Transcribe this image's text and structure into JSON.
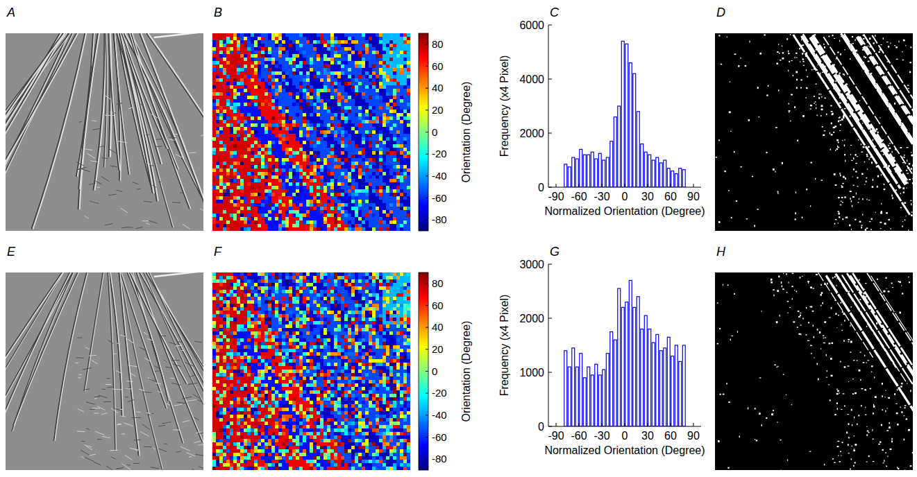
{
  "chart_data": [
    {
      "type": "grayscale_image",
      "panel_label": "A"
    },
    {
      "type": "heatmap",
      "panel_label": "B",
      "colorbar": {
        "range": [
          -90,
          90
        ],
        "ticks": [
          -80,
          -60,
          -40,
          -20,
          0,
          20,
          40,
          60,
          80
        ],
        "label": "Orientation (Degree)"
      }
    },
    {
      "type": "histogram",
      "panel_label": "C",
      "bins": [
        -80,
        -75,
        -70,
        -65,
        -60,
        -55,
        -50,
        -45,
        -40,
        -35,
        -30,
        -25,
        -20,
        -15,
        -10,
        -5,
        0,
        5,
        10,
        15,
        20,
        25,
        30,
        35,
        40,
        45,
        50,
        55,
        60,
        65,
        70,
        75,
        80
      ],
      "values": [
        850,
        750,
        1100,
        1050,
        1400,
        1200,
        1200,
        1300,
        1050,
        1250,
        1000,
        1100,
        1700,
        2600,
        3000,
        5400,
        5300,
        4600,
        4200,
        2800,
        1600,
        1300,
        1200,
        1000,
        1100,
        900,
        1000,
        700,
        600,
        500,
        700,
        650
      ],
      "color": "#0000ff",
      "xlim": [
        -100,
        100
      ],
      "xticks": [
        -90,
        -60,
        -30,
        0,
        30,
        60,
        90
      ],
      "ylim": [
        0,
        6000
      ],
      "yticks": [
        0,
        2000,
        4000,
        6000
      ],
      "x_label": "Normalized Orientation (Degree)",
      "y_label": "Frequency (x4 Pixel)"
    },
    {
      "type": "binary_image",
      "panel_label": "D"
    },
    {
      "type": "grayscale_image",
      "panel_label": "E"
    },
    {
      "type": "heatmap",
      "panel_label": "F",
      "colorbar": {
        "range": [
          -90,
          90
        ],
        "ticks": [
          -80,
          -60,
          -40,
          -20,
          0,
          20,
          40,
          60,
          80
        ],
        "label": "Orientation (Degree)"
      }
    },
    {
      "type": "histogram",
      "panel_label": "G",
      "bins": [
        -80,
        -75,
        -70,
        -65,
        -60,
        -55,
        -50,
        -45,
        -40,
        -35,
        -30,
        -25,
        -20,
        -15,
        -10,
        -5,
        0,
        5,
        10,
        15,
        20,
        25,
        30,
        35,
        40,
        45,
        50,
        55,
        60,
        65,
        70,
        75,
        80
      ],
      "values": [
        1400,
        1100,
        1450,
        1100,
        1350,
        900,
        1100,
        950,
        1150,
        950,
        1050,
        1350,
        1750,
        1600,
        2550,
        2200,
        2300,
        2700,
        2200,
        2400,
        1800,
        2050,
        1800,
        1550,
        1700,
        1400,
        1450,
        1650,
        1300,
        1500,
        1200,
        1500
      ],
      "color": "#0000ff",
      "xlim": [
        -100,
        100
      ],
      "xticks": [
        -90,
        -60,
        -30,
        0,
        30,
        60,
        90
      ],
      "ylim": [
        0,
        3000
      ],
      "yticks": [
        0,
        1000,
        2000,
        3000
      ],
      "x_label": "Normalized Orientation (Degree)",
      "y_label": "Frequency (x4 Pixel)"
    },
    {
      "type": "binary_image",
      "panel_label": "H"
    }
  ]
}
